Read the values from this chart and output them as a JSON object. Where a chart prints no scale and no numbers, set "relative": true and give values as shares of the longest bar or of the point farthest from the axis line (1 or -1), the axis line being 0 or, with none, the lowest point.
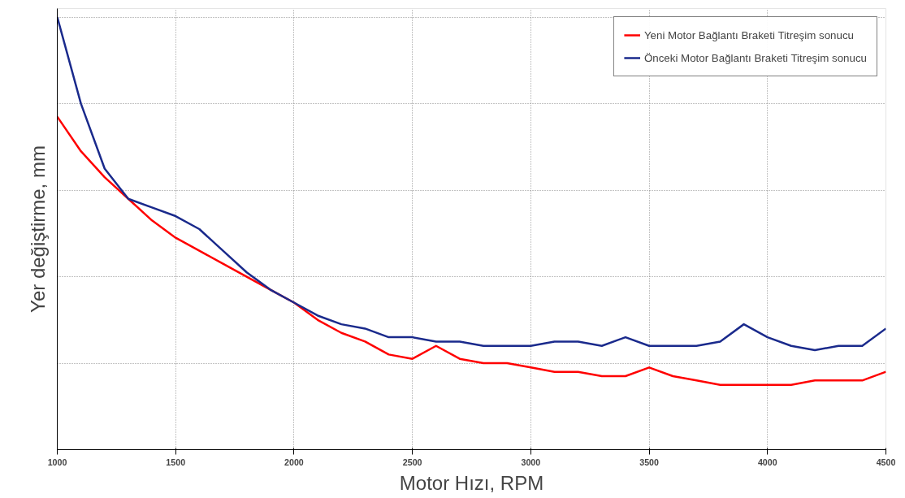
{
  "chart_data": {
    "type": "line",
    "xlabel": "Motor Hızı, RPM",
    "ylabel": "Yer değiştirme, mm",
    "relative": true,
    "x": [
      1000,
      1100,
      1200,
      1300,
      1400,
      1500,
      1600,
      1700,
      1800,
      1900,
      2000,
      2100,
      2200,
      2300,
      2400,
      2500,
      2600,
      2700,
      2800,
      2900,
      3000,
      3100,
      3200,
      3300,
      3400,
      3500,
      3600,
      3700,
      3800,
      3900,
      4000,
      4100,
      4200,
      4300,
      4400,
      4500
    ],
    "series": [
      {
        "name": "Yeni Motor Bağlantı Braketi Titreşim sonucu",
        "color": "#ff0000",
        "values": [
          0.77,
          0.69,
          0.63,
          0.58,
          0.53,
          0.49,
          0.46,
          0.43,
          0.4,
          0.37,
          0.34,
          0.3,
          0.27,
          0.25,
          0.22,
          0.21,
          0.24,
          0.21,
          0.2,
          0.2,
          0.19,
          0.18,
          0.18,
          0.17,
          0.17,
          0.19,
          0.17,
          0.16,
          0.15,
          0.15,
          0.15,
          0.15,
          0.16,
          0.16,
          0.16,
          0.18
        ]
      },
      {
        "name": "Önceki Motor Bağlantı Braketi Titreşim sonucu",
        "color": "#1a2a8c",
        "values": [
          1.0,
          0.8,
          0.65,
          0.58,
          0.56,
          0.54,
          0.51,
          0.46,
          0.41,
          0.37,
          0.34,
          0.31,
          0.29,
          0.28,
          0.26,
          0.26,
          0.25,
          0.25,
          0.24,
          0.24,
          0.24,
          0.25,
          0.25,
          0.24,
          0.26,
          0.24,
          0.24,
          0.24,
          0.25,
          0.29,
          0.26,
          0.24,
          0.23,
          0.24,
          0.24,
          0.28
        ]
      }
    ],
    "xlim": [
      1000,
      4500
    ],
    "xticks": [
      1000,
      1500,
      2000,
      2500,
      3000,
      3500,
      4000,
      4500
    ],
    "grid": true,
    "legend": "top right",
    "tick_labels": "x",
    "line_style": "solid",
    "marker": "none"
  }
}
